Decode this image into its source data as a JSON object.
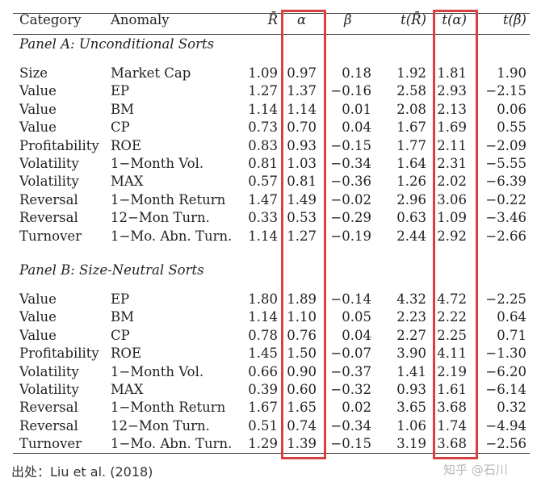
{
  "table": {
    "headers": {
      "category": "Category",
      "anomaly": "Anomaly",
      "r_bar": "R̄",
      "alpha": "α",
      "beta": "β",
      "t_r_bar": "t(R̄)",
      "t_alpha": "t(α)",
      "t_beta": "t(β)"
    },
    "panels": [
      {
        "title": "Panel A: Unconditional Sorts",
        "rows": [
          {
            "category": "Size",
            "anomaly": "Market Cap",
            "r_bar": "1.09",
            "alpha": "0.97",
            "beta": "0.18",
            "t_r_bar": "1.92",
            "t_alpha": "1.81",
            "t_beta": "1.90"
          },
          {
            "category": "Value",
            "anomaly": "EP",
            "r_bar": "1.27",
            "alpha": "1.37",
            "beta": "−0.16",
            "t_r_bar": "2.58",
            "t_alpha": "2.93",
            "t_beta": "−2.15"
          },
          {
            "category": "Value",
            "anomaly": "BM",
            "r_bar": "1.14",
            "alpha": "1.14",
            "beta": "0.01",
            "t_r_bar": "2.08",
            "t_alpha": "2.13",
            "t_beta": "0.06"
          },
          {
            "category": "Value",
            "anomaly": "CP",
            "r_bar": "0.73",
            "alpha": "0.70",
            "beta": "0.04",
            "t_r_bar": "1.67",
            "t_alpha": "1.69",
            "t_beta": "0.55"
          },
          {
            "category": "Profitability",
            "anomaly": "ROE",
            "r_bar": "0.83",
            "alpha": "0.93",
            "beta": "−0.15",
            "t_r_bar": "1.77",
            "t_alpha": "2.11",
            "t_beta": "−2.09"
          },
          {
            "category": "Volatility",
            "anomaly": "1−Month Vol.",
            "r_bar": "0.81",
            "alpha": "1.03",
            "beta": "−0.34",
            "t_r_bar": "1.64",
            "t_alpha": "2.31",
            "t_beta": "−5.55"
          },
          {
            "category": "Volatility",
            "anomaly": "MAX",
            "r_bar": "0.57",
            "alpha": "0.81",
            "beta": "−0.36",
            "t_r_bar": "1.26",
            "t_alpha": "2.02",
            "t_beta": "−6.39"
          },
          {
            "category": "Reversal",
            "anomaly": "1−Month Return",
            "r_bar": "1.47",
            "alpha": "1.49",
            "beta": "−0.02",
            "t_r_bar": "2.96",
            "t_alpha": "3.06",
            "t_beta": "−0.22"
          },
          {
            "category": "Reversal",
            "anomaly": "12−Mon Turn.",
            "r_bar": "0.33",
            "alpha": "0.53",
            "beta": "−0.29",
            "t_r_bar": "0.63",
            "t_alpha": "1.09",
            "t_beta": "−3.46"
          },
          {
            "category": "Turnover",
            "anomaly": "1−Mo. Abn. Turn.",
            "r_bar": "1.14",
            "alpha": "1.27",
            "beta": "−0.19",
            "t_r_bar": "2.44",
            "t_alpha": "2.92",
            "t_beta": "−2.66"
          }
        ]
      },
      {
        "title": "Panel B: Size-Neutral Sorts",
        "rows": [
          {
            "category": "Value",
            "anomaly": "EP",
            "r_bar": "1.80",
            "alpha": "1.89",
            "beta": "−0.14",
            "t_r_bar": "4.32",
            "t_alpha": "4.72",
            "t_beta": "−2.25"
          },
          {
            "category": "Value",
            "anomaly": "BM",
            "r_bar": "1.14",
            "alpha": "1.10",
            "beta": "0.05",
            "t_r_bar": "2.23",
            "t_alpha": "2.22",
            "t_beta": "0.64"
          },
          {
            "category": "Value",
            "anomaly": "CP",
            "r_bar": "0.78",
            "alpha": "0.76",
            "beta": "0.04",
            "t_r_bar": "2.27",
            "t_alpha": "2.25",
            "t_beta": "0.71"
          },
          {
            "category": "Profitability",
            "anomaly": "ROE",
            "r_bar": "1.45",
            "alpha": "1.50",
            "beta": "−0.07",
            "t_r_bar": "3.90",
            "t_alpha": "4.11",
            "t_beta": "−1.30"
          },
          {
            "category": "Volatility",
            "anomaly": "1−Month Vol.",
            "r_bar": "0.66",
            "alpha": "0.90",
            "beta": "−0.37",
            "t_r_bar": "1.41",
            "t_alpha": "2.19",
            "t_beta": "−6.20"
          },
          {
            "category": "Volatility",
            "anomaly": "MAX",
            "r_bar": "0.39",
            "alpha": "0.60",
            "beta": "−0.32",
            "t_r_bar": "0.93",
            "t_alpha": "1.61",
            "t_beta": "−6.14"
          },
          {
            "category": "Reversal",
            "anomaly": "1−Month Return",
            "r_bar": "1.67",
            "alpha": "1.65",
            "beta": "0.02",
            "t_r_bar": "3.65",
            "t_alpha": "3.68",
            "t_beta": "0.32"
          },
          {
            "category": "Reversal",
            "anomaly": "12−Mon Turn.",
            "r_bar": "0.51",
            "alpha": "0.74",
            "beta": "−0.34",
            "t_r_bar": "1.06",
            "t_alpha": "1.74",
            "t_beta": "−4.94"
          },
          {
            "category": "Turnover",
            "anomaly": "1−Mo. Abn. Turn.",
            "r_bar": "1.29",
            "alpha": "1.39",
            "beta": "−0.15",
            "t_r_bar": "3.19",
            "t_alpha": "3.68",
            "t_beta": "−2.56"
          }
        ]
      }
    ]
  },
  "highlight": {
    "color": "#d9403f",
    "columns": [
      "alpha",
      "t_alpha"
    ]
  },
  "footer": {
    "source": "出处：Liu et al. (2018)",
    "watermark": "知乎 @石川"
  }
}
